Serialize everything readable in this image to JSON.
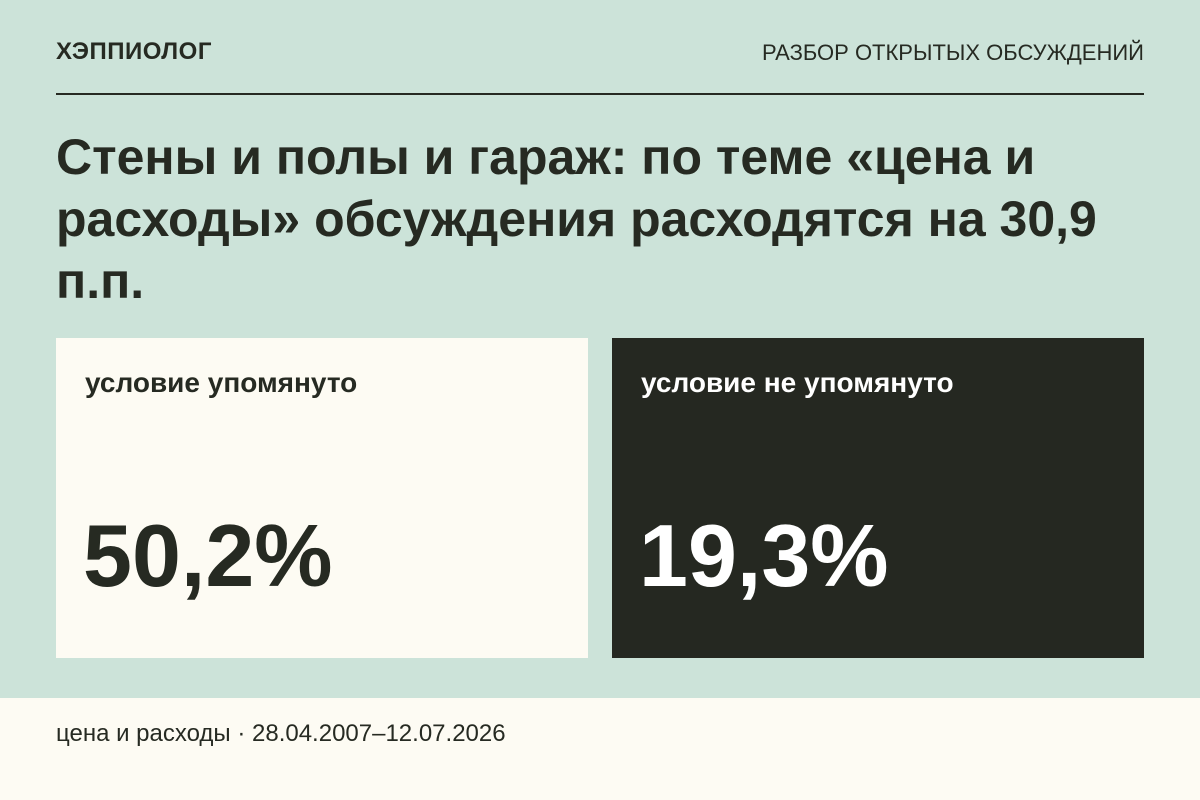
{
  "header": {
    "brand": "ХЭППИОЛОГ",
    "section": "РАЗБОР ОТКРЫТЫХ ОБСУЖДЕНИЙ"
  },
  "headline": "Стены и полы и гараж: по теме «цена и расходы» обсуждения расходятся на 30,9 п.п.",
  "cards": [
    {
      "label": "условие упомянуто",
      "value": "50,2%"
    },
    {
      "label": "условие не упомянуто",
      "value": "19,3%"
    }
  ],
  "footer": {
    "text": "цена и расходы · 28.04.2007–12.07.2026"
  },
  "colors": {
    "background": "#cce3d9",
    "card_light": "#fdfbf3",
    "card_dark": "#252821",
    "ink": "#262a22"
  }
}
